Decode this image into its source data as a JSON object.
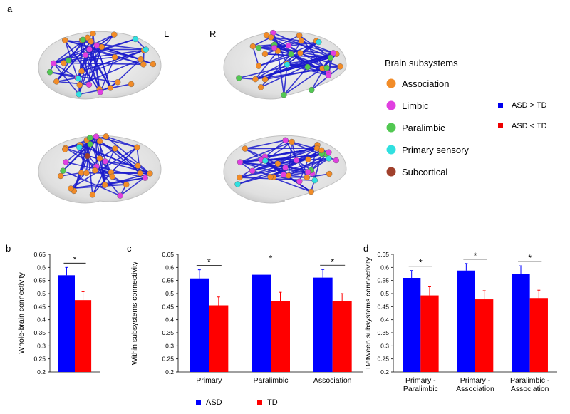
{
  "panel_labels": [
    "a",
    "b",
    "c",
    "d"
  ],
  "hemispheres": [
    "L",
    "R"
  ],
  "subsystem_legend": {
    "title": "Brain subsystems",
    "items": [
      {
        "name": "Association",
        "color": "#f28c28"
      },
      {
        "name": "Limbic",
        "color": "#e040e0"
      },
      {
        "name": "Paralimbic",
        "color": "#52c852"
      },
      {
        "name": "Primary sensory",
        "color": "#30e0e0"
      },
      {
        "name": "Subcortical",
        "color": "#a0402c"
      }
    ]
  },
  "edge_legend": [
    {
      "name": "ASD > TD",
      "color": "#0000ee"
    },
    {
      "name": "ASD < TD",
      "color": "#ee0000"
    }
  ],
  "chart_data": [
    {
      "type": "bar",
      "ylabel": "Whole-brain connectivity",
      "categories": [
        null
      ],
      "series": [
        {
          "color": "#0000ff",
          "values": [
            0.57
          ],
          "errors": [
            0.03
          ]
        },
        {
          "color": "#ff0000",
          "values": [
            0.475
          ],
          "errors": [
            0.032
          ]
        }
      ],
      "annotations": [
        "*"
      ],
      "ylim": [
        0.2,
        0.65
      ],
      "yticks": [
        0.2,
        0.25,
        0.3,
        0.35,
        0.4,
        0.45,
        0.5,
        0.55,
        0.6,
        0.65
      ]
    },
    {
      "type": "bar",
      "ylabel": "Within subsystems connectivity",
      "categories": [
        [
          "Primary"
        ],
        [
          "Paralimbic"
        ],
        [
          "Association"
        ]
      ],
      "series": [
        {
          "name": "ASD",
          "color": "#0000ff",
          "values": [
            0.558,
            0.572,
            0.561
          ],
          "errors": [
            0.033,
            0.033,
            0.031
          ]
        },
        {
          "name": "TD",
          "color": "#ff0000",
          "values": [
            0.455,
            0.472,
            0.47
          ],
          "errors": [
            0.032,
            0.033,
            0.03
          ]
        }
      ],
      "annotations": [
        "*",
        "*",
        "*"
      ],
      "ylim": [
        0.2,
        0.65
      ],
      "yticks": [
        0.2,
        0.25,
        0.3,
        0.35,
        0.4,
        0.45,
        0.5,
        0.55,
        0.6,
        0.65
      ]
    },
    {
      "type": "bar",
      "ylabel": "Between subsystems connectivity",
      "categories": [
        [
          "Primary -",
          "Paralimbic"
        ],
        [
          "Primary -",
          "Association"
        ],
        [
          "Paralimbic -",
          "Association"
        ]
      ],
      "series": [
        {
          "color": "#0000ff",
          "values": [
            0.56,
            0.588,
            0.576
          ],
          "errors": [
            0.028,
            0.027,
            0.03
          ]
        },
        {
          "color": "#ff0000",
          "values": [
            0.493,
            0.478,
            0.483
          ],
          "errors": [
            0.033,
            0.033,
            0.03
          ]
        }
      ],
      "annotations": [
        "*",
        "*",
        "*"
      ],
      "ylim": [
        0.2,
        0.65
      ],
      "yticks": [
        0.2,
        0.25,
        0.3,
        0.35,
        0.4,
        0.45,
        0.5,
        0.55,
        0.6,
        0.65
      ]
    }
  ]
}
